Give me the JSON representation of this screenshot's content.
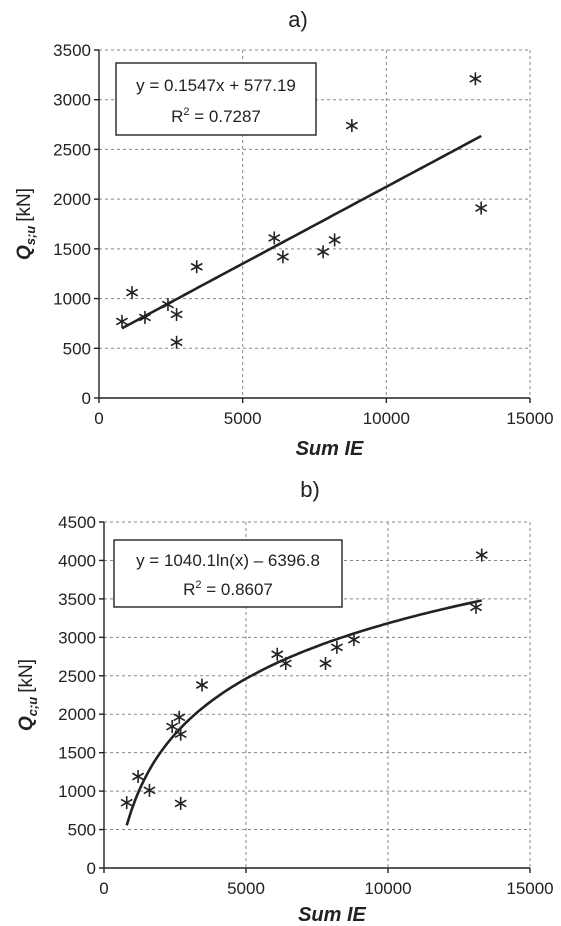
{
  "chart_data": [
    {
      "type": "scatter",
      "panel_label": "a)",
      "xlabel": "Sum IE",
      "ylabel_main": "Q",
      "ylabel_sub": "s;u",
      "ylabel_unit": "[kN]",
      "xlim": [
        0,
        15000
      ],
      "ylim": [
        0,
        3500
      ],
      "xticks": [
        0,
        5000,
        10000,
        15000
      ],
      "yticks": [
        0,
        500,
        1000,
        1500,
        2000,
        2500,
        3000,
        3500
      ],
      "grid": true,
      "marker": "asterisk",
      "points": [
        {
          "x": 800,
          "y": 770
        },
        {
          "x": 1150,
          "y": 1060
        },
        {
          "x": 1600,
          "y": 810
        },
        {
          "x": 2400,
          "y": 940
        },
        {
          "x": 2700,
          "y": 840
        },
        {
          "x": 2700,
          "y": 560
        },
        {
          "x": 3400,
          "y": 1320
        },
        {
          "x": 6100,
          "y": 1610
        },
        {
          "x": 6400,
          "y": 1420
        },
        {
          "x": 7800,
          "y": 1470
        },
        {
          "x": 8200,
          "y": 1590
        },
        {
          "x": 8800,
          "y": 2740
        },
        {
          "x": 13100,
          "y": 3210
        },
        {
          "x": 13300,
          "y": 1910
        }
      ],
      "trendline": {
        "kind": "linear",
        "a": 0.1547,
        "b": 577.19,
        "x_from": 800,
        "x_to": 13300
      },
      "equation": "y = 0.1547x + 577.19",
      "r2_label": "R",
      "r2_sup": "2",
      "r2_value": " = 0.7287",
      "annotation_position": "top-left"
    },
    {
      "type": "scatter",
      "panel_label": "b)",
      "xlabel": "Sum IE",
      "ylabel_main": "Q",
      "ylabel_sub": "c;u",
      "ylabel_unit": "[kN]",
      "xlim": [
        0,
        15000
      ],
      "ylim": [
        0,
        4500
      ],
      "xticks": [
        0,
        5000,
        10000,
        15000
      ],
      "yticks": [
        0,
        500,
        1000,
        1500,
        2000,
        2500,
        3000,
        3500,
        4000,
        4500
      ],
      "grid": true,
      "marker": "asterisk",
      "points": [
        {
          "x": 800,
          "y": 850
        },
        {
          "x": 1200,
          "y": 1190
        },
        {
          "x": 1600,
          "y": 1010
        },
        {
          "x": 2400,
          "y": 1840
        },
        {
          "x": 2650,
          "y": 1960
        },
        {
          "x": 2700,
          "y": 1740
        },
        {
          "x": 2700,
          "y": 840
        },
        {
          "x": 3450,
          "y": 2380
        },
        {
          "x": 6100,
          "y": 2780
        },
        {
          "x": 6400,
          "y": 2660
        },
        {
          "x": 7800,
          "y": 2660
        },
        {
          "x": 8200,
          "y": 2870
        },
        {
          "x": 8800,
          "y": 2970
        },
        {
          "x": 13100,
          "y": 3390
        },
        {
          "x": 13300,
          "y": 4070
        }
      ],
      "trendline": {
        "kind": "log",
        "a": 1040.1,
        "b": -6396.8,
        "x_from": 800,
        "x_to": 13300
      },
      "equation": "y = 1040.1ln(x) – 6396.8",
      "r2_label": "R",
      "r2_sup": "2",
      "r2_value": " = 0.8607",
      "annotation_position": "top-left"
    }
  ]
}
